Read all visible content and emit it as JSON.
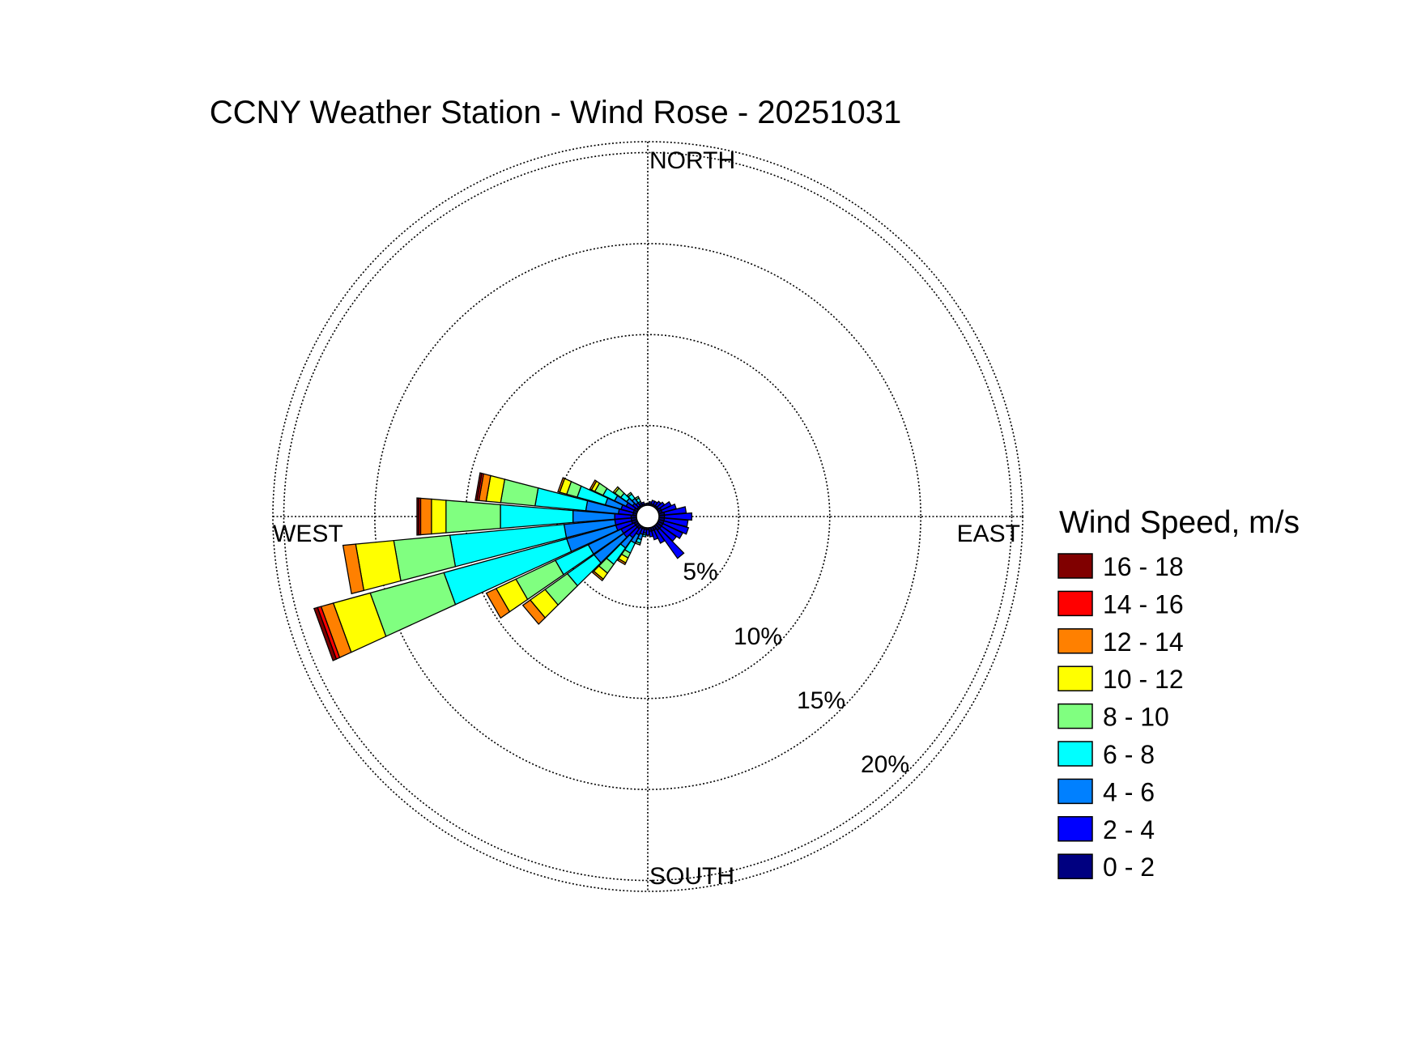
{
  "chart_data": {
    "type": "windrose",
    "title": "CCNY Weather Station - Wind Rose - 20251031",
    "directions": [
      "NORTH",
      "EAST",
      "SOUTH",
      "WEST"
    ],
    "ring_labels": [
      "5%",
      "10%",
      "15%",
      "20%"
    ],
    "rings": [
      5,
      10,
      15,
      20
    ],
    "rmax": 20.6,
    "legend": {
      "title": "Wind Speed, m/s",
      "placement": "right",
      "bins": [
        {
          "label": "16 - 18",
          "color": "#800000"
        },
        {
          "label": "14 - 16",
          "color": "#ff0000"
        },
        {
          "label": "12 - 14",
          "color": "#ff8000"
        },
        {
          "label": "10 - 12",
          "color": "#ffff00"
        },
        {
          "label": "8 - 10",
          "color": "#80ff80"
        },
        {
          "label": "6 - 8",
          "color": "#00ffff"
        },
        {
          "label": "4 - 6",
          "color": "#0080ff"
        },
        {
          "label": "2 - 4",
          "color": "#0000ff"
        },
        {
          "label": "0 - 2",
          "color": "#000080"
        }
      ]
    },
    "bin_order_inner_to_outer": [
      "0 - 2",
      "2 - 4",
      "4 - 6",
      "6 - 8",
      "8 - 10",
      "10 - 12",
      "12 - 14",
      "14 - 16",
      "16 - 18"
    ],
    "sector_width_deg": 10,
    "sectors": [
      {
        "dir": 0,
        "cum": [
          0.1,
          0.1,
          0.1,
          0.1,
          0.1,
          0.1,
          0.1,
          0.1,
          0.1
        ]
      },
      {
        "dir": 10,
        "cum": [
          0.1,
          0.2,
          0.2,
          0.2,
          0.2,
          0.2,
          0.2,
          0.2,
          0.2
        ]
      },
      {
        "dir": 20,
        "cum": [
          0.1,
          0.3,
          0.3,
          0.3,
          0.3,
          0.3,
          0.3,
          0.3,
          0.3
        ]
      },
      {
        "dir": 30,
        "cum": [
          0.1,
          0.3,
          0.3,
          0.3,
          0.3,
          0.3,
          0.3,
          0.3,
          0.3
        ]
      },
      {
        "dir": 40,
        "cum": [
          0.1,
          0.4,
          0.4,
          0.4,
          0.4,
          0.4,
          0.4,
          0.4,
          0.4
        ]
      },
      {
        "dir": 50,
        "cum": [
          0.1,
          0.5,
          0.5,
          0.5,
          0.5,
          0.5,
          0.5,
          0.5,
          0.5
        ]
      },
      {
        "dir": 60,
        "cum": [
          0.2,
          0.8,
          0.8,
          0.8,
          0.8,
          0.8,
          0.8,
          0.8,
          0.8
        ]
      },
      {
        "dir": 70,
        "cum": [
          0.2,
          1.0,
          1.0,
          1.0,
          1.0,
          1.0,
          1.0,
          1.0,
          1.0
        ]
      },
      {
        "dir": 80,
        "cum": [
          0.3,
          1.5,
          1.5,
          1.5,
          1.5,
          1.5,
          1.5,
          1.5,
          1.5
        ]
      },
      {
        "dir": 90,
        "cum": [
          0.3,
          1.8,
          1.8,
          1.8,
          1.8,
          1.8,
          1.8,
          1.8,
          1.8
        ]
      },
      {
        "dir": 100,
        "cum": [
          0.3,
          1.6,
          1.6,
          1.6,
          1.6,
          1.6,
          1.6,
          1.6,
          1.6
        ]
      },
      {
        "dir": 110,
        "cum": [
          0.3,
          1.7,
          1.7,
          1.7,
          1.7,
          1.7,
          1.7,
          1.7,
          1.7
        ]
      },
      {
        "dir": 120,
        "cum": [
          0.3,
          1.5,
          1.5,
          1.5,
          1.5,
          1.5,
          1.5,
          1.5,
          1.5
        ]
      },
      {
        "dir": 130,
        "cum": [
          0.3,
          1.3,
          1.3,
          1.3,
          1.3,
          1.3,
          1.3,
          1.3,
          1.3
        ]
      },
      {
        "dir": 140,
        "cum": [
          0.3,
          2.2,
          2.2,
          2.2,
          2.2,
          2.2,
          2.2,
          2.2,
          2.2
        ]
      },
      {
        "dir": 150,
        "cum": [
          0.2,
          1.0,
          1.0,
          1.0,
          1.0,
          1.0,
          1.0,
          1.0,
          1.0
        ]
      },
      {
        "dir": 160,
        "cum": [
          0.2,
          0.7,
          0.7,
          0.7,
          0.7,
          0.7,
          0.7,
          0.7,
          0.7
        ]
      },
      {
        "dir": 170,
        "cum": [
          0.2,
          0.5,
          0.5,
          0.5,
          0.5,
          0.5,
          0.5,
          0.5,
          0.5
        ]
      },
      {
        "dir": 180,
        "cum": [
          0.1,
          0.4,
          0.4,
          0.4,
          0.4,
          0.4,
          0.4,
          0.4,
          0.4
        ]
      },
      {
        "dir": 190,
        "cum": [
          0.1,
          0.3,
          0.4,
          0.5,
          0.5,
          0.5,
          0.5,
          0.5,
          0.5
        ]
      },
      {
        "dir": 200,
        "cum": [
          0.1,
          0.4,
          0.7,
          0.9,
          1.0,
          1.0,
          1.0,
          1.0,
          1.0
        ]
      },
      {
        "dir": 210,
        "cum": [
          0.1,
          0.5,
          1.0,
          1.6,
          1.9,
          2.2,
          2.3,
          2.3,
          2.3
        ]
      },
      {
        "dir": 220,
        "cum": [
          0.2,
          0.8,
          1.5,
          2.6,
          3.2,
          3.6,
          3.7,
          3.7,
          3.7
        ]
      },
      {
        "dir": 230,
        "cum": [
          0.2,
          1.0,
          3.0,
          4.8,
          6.3,
          7.3,
          7.8,
          7.8,
          7.8
        ]
      },
      {
        "dir": 240,
        "cum": [
          0.2,
          1.0,
          3.0,
          5.0,
          7.4,
          8.6,
          9.2,
          9.2,
          9.2
        ]
      },
      {
        "dir": 250,
        "cum": [
          0.3,
          1.2,
          4.0,
          11.0,
          15.2,
          17.3,
          18.0,
          18.2,
          18.4
        ]
      },
      {
        "dir": 260,
        "cum": [
          0.3,
          1.2,
          4.0,
          10.3,
          13.4,
          15.5,
          16.2,
          16.2,
          16.2
        ]
      },
      {
        "dir": 270,
        "cum": [
          0.3,
          1.2,
          3.5,
          7.5,
          10.5,
          11.3,
          11.9,
          12.0,
          12.1
        ]
      },
      {
        "dir": 280,
        "cum": [
          0.2,
          1.0,
          2.8,
          5.6,
          7.5,
          8.3,
          8.7,
          8.8,
          8.9
        ]
      },
      {
        "dir": 290,
        "cum": [
          0.2,
          0.9,
          1.8,
          3.4,
          4.0,
          4.4,
          4.5,
          4.5,
          4.5
        ]
      },
      {
        "dir": 300,
        "cum": [
          0.2,
          0.7,
          1.4,
          2.1,
          2.6,
          2.8,
          2.9,
          2.9,
          2.9
        ]
      },
      {
        "dir": 310,
        "cum": [
          0.1,
          0.4,
          0.8,
          1.2,
          1.6,
          1.7,
          1.7,
          1.7,
          1.7
        ]
      },
      {
        "dir": 320,
        "cum": [
          0.1,
          0.3,
          0.6,
          0.9,
          1.0,
          1.0,
          1.0,
          1.0,
          1.0
        ]
      },
      {
        "dir": 330,
        "cum": [
          0.1,
          0.2,
          0.3,
          0.5,
          0.6,
          0.6,
          0.6,
          0.6,
          0.6
        ]
      },
      {
        "dir": 340,
        "cum": [
          0.1,
          0.2,
          0.2,
          0.2,
          0.2,
          0.2,
          0.2,
          0.2,
          0.2
        ]
      },
      {
        "dir": 350,
        "cum": [
          0.1,
          0.1,
          0.1,
          0.1,
          0.1,
          0.1,
          0.1,
          0.1,
          0.1
        ]
      }
    ]
  }
}
